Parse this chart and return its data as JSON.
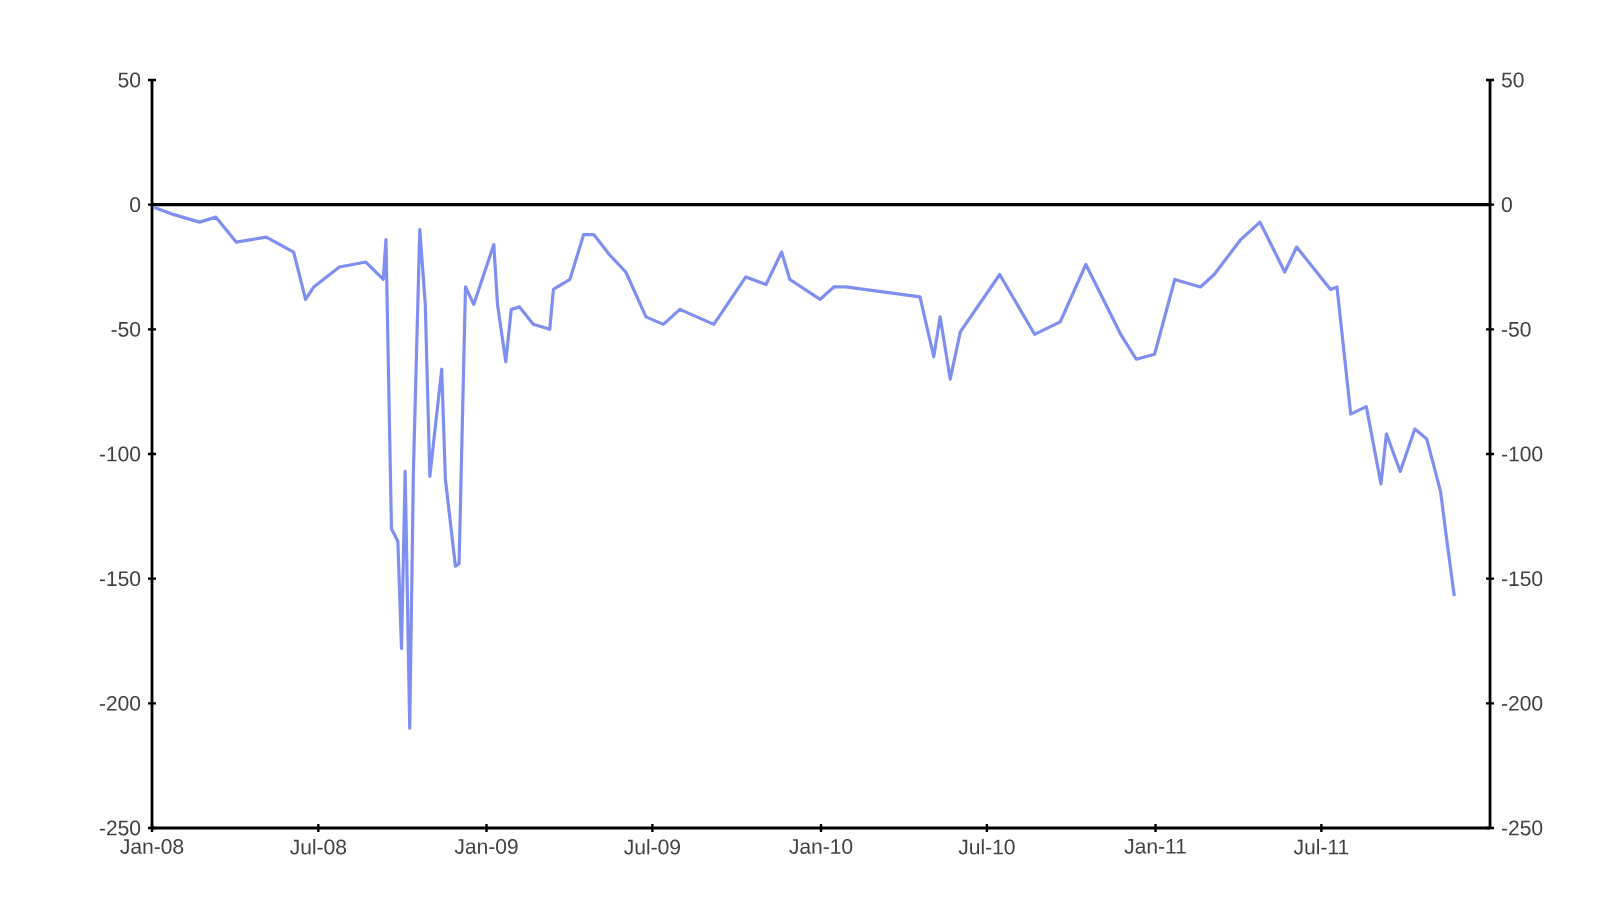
{
  "chart_data": {
    "type": "line",
    "color": "#7f8ff0",
    "x": [
      "2008-01-03",
      "2008-01-25",
      "2008-02-22",
      "2008-03-11",
      "2008-04-02",
      "2008-05-05",
      "2008-06-04",
      "2008-06-17",
      "2008-06-26",
      "2008-07-24",
      "2008-08-22",
      "2008-09-10",
      "2008-09-13",
      "2008-09-19",
      "2008-09-26",
      "2008-09-30",
      "2008-10-04",
      "2008-10-09",
      "2008-10-13",
      "2008-10-20",
      "2008-10-26",
      "2008-10-31",
      "2008-11-06",
      "2008-11-13",
      "2008-11-17",
      "2008-11-28",
      "2008-12-02",
      "2008-12-09",
      "2008-12-18",
      "2009-01-09",
      "2009-01-13",
      "2009-01-22",
      "2009-01-28",
      "2009-02-06",
      "2009-02-21",
      "2009-03-11",
      "2009-03-15",
      "2009-04-02",
      "2009-04-17",
      "2009-04-28",
      "2009-05-15",
      "2009-06-02",
      "2009-06-24",
      "2009-07-13",
      "2009-07-31",
      "2009-09-06",
      "2009-10-11",
      "2009-11-02",
      "2009-11-19",
      "2009-11-28",
      "2009-12-31",
      "2010-01-15",
      "2010-01-28",
      "2010-04-19",
      "2010-05-04",
      "2010-05-11",
      "2010-05-22",
      "2010-06-02",
      "2010-07-15",
      "2010-08-22",
      "2010-09-19",
      "2010-10-17",
      "2010-11-24",
      "2010-12-11",
      "2010-12-31",
      "2011-01-22",
      "2011-02-19",
      "2011-03-06",
      "2011-04-04",
      "2011-04-25",
      "2011-05-22",
      "2011-06-04",
      "2011-07-11",
      "2011-07-18",
      "2011-08-02",
      "2011-08-19",
      "2011-09-04",
      "2011-09-10",
      "2011-09-25",
      "2011-10-11",
      "2011-10-24",
      "2011-11-08",
      "2011-11-15",
      "2011-11-23"
    ],
    "values": [
      -1,
      -4,
      -7,
      -5,
      -15,
      -13,
      -19,
      -38,
      -33,
      -25,
      -23,
      -30,
      -14,
      -130,
      -135,
      -178,
      -107,
      -210,
      -107,
      -10,
      -40,
      -109,
      -89,
      -66,
      -110,
      -145,
      -144,
      -33,
      -40,
      -16,
      -40,
      -63,
      -42,
      -41,
      -48,
      -50,
      -34,
      -30,
      -12,
      -12,
      -20,
      -27,
      -45,
      -48,
      -42,
      -48,
      -29,
      -32,
      -19,
      -30,
      -38,
      -33,
      -33,
      -37,
      -61,
      -45,
      -70,
      -51,
      -28,
      -52,
      -47,
      -24,
      -52,
      -62,
      -60,
      -30,
      -33,
      -28,
      -14,
      -7,
      -27,
      -17,
      -34,
      -33,
      -84,
      -81,
      -112,
      -92,
      -107,
      -90,
      -94,
      -115,
      -135,
      -157
    ],
    "xlim": [
      "2008-01",
      "2012-01"
    ],
    "xticks": [
      {
        "value": "2008-01",
        "label": "Jan-08"
      },
      {
        "value": "2008-07",
        "label": "Jul-08"
      },
      {
        "value": "2009-01",
        "label": "Jan-09"
      },
      {
        "value": "2009-07",
        "label": "Jul-09"
      },
      {
        "value": "2010-01",
        "label": "Jan-10"
      },
      {
        "value": "2010-07",
        "label": "Jul-10"
      },
      {
        "value": "2011-01",
        "label": "Jan-11"
      },
      {
        "value": "2011-07",
        "label": "Jul-11"
      }
    ],
    "ylim": [
      -250,
      50
    ],
    "yticks": [
      -250,
      -200,
      -150,
      -100,
      -50,
      0,
      50
    ],
    "y2lim": [
      -250,
      50
    ],
    "y2ticks": [
      -250,
      -200,
      -150,
      -100,
      -50,
      0,
      50
    ],
    "ref_lines": [
      {
        "axis": "y",
        "value": 0,
        "color": "#000000"
      }
    ]
  }
}
